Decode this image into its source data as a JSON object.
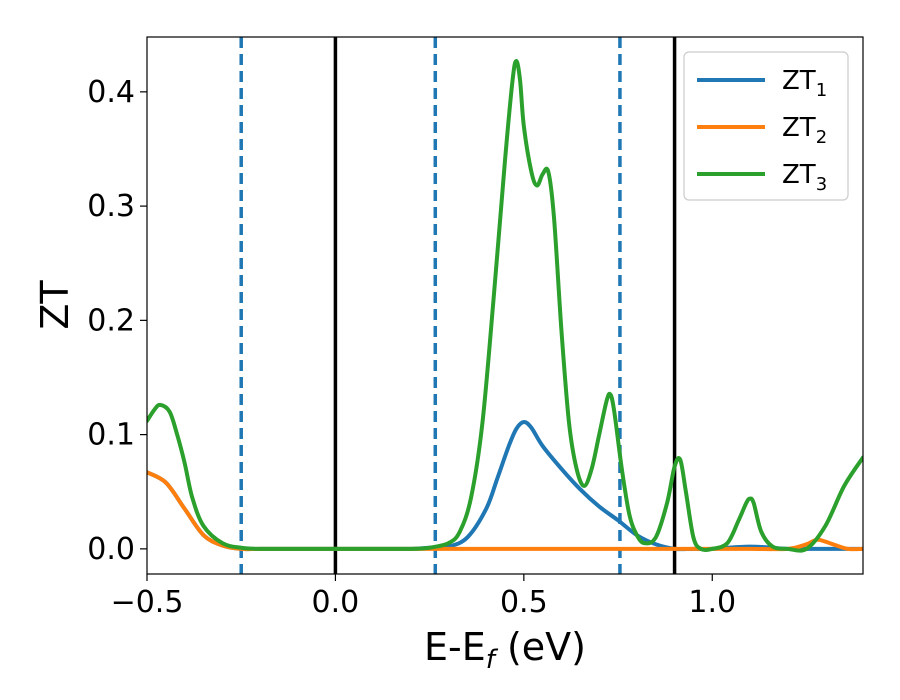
{
  "chart_data": {
    "type": "line",
    "xlabel": "E-E",
    "xlabel_sub": "f",
    "xlabel_unit": " (eV)",
    "ylabel": "ZT",
    "xlim": [
      -0.5,
      1.4
    ],
    "ylim": [
      -0.022,
      0.448
    ],
    "xticks": [
      -0.5,
      0.0,
      0.5,
      1.0
    ],
    "xtick_labels": [
      "−0.5",
      "0.0",
      "0.5",
      "1.0"
    ],
    "yticks": [
      0.0,
      0.1,
      0.2,
      0.3,
      0.4
    ],
    "ytick_labels": [
      "0.0",
      "0.1",
      "0.2",
      "0.3",
      "0.4"
    ],
    "grid": false,
    "legend_position": "top-right",
    "vlines_solid": [
      0.0,
      0.9
    ],
    "vlines_dashed": [
      -0.25,
      0.265,
      0.755
    ],
    "colors": {
      "ZT1": "#1f77b4",
      "ZT2": "#ff7f0e",
      "ZT3": "#2ca02c",
      "solid_vline": "#000000",
      "dashed_vline": "#1f77b4"
    },
    "series": [
      {
        "name": "ZT",
        "sub": "1",
        "color": "#1f77b4",
        "x": [
          -0.5,
          -0.45,
          -0.4,
          -0.35,
          -0.3,
          -0.25,
          -0.2,
          -0.1,
          0.0,
          0.1,
          0.2,
          0.25,
          0.3,
          0.35,
          0.4,
          0.43,
          0.46,
          0.48,
          0.5,
          0.52,
          0.55,
          0.6,
          0.65,
          0.7,
          0.75,
          0.8,
          0.85,
          0.9,
          0.95,
          1.0,
          1.1,
          1.2,
          1.25,
          1.3,
          1.35,
          1.4
        ],
        "y": [
          0.067,
          0.058,
          0.035,
          0.012,
          0.003,
          0.0,
          0.0,
          0.0,
          0.0,
          0.0,
          0.0,
          0.001,
          0.002,
          0.01,
          0.035,
          0.062,
          0.09,
          0.105,
          0.111,
          0.106,
          0.09,
          0.07,
          0.052,
          0.037,
          0.025,
          0.012,
          0.004,
          0.0,
          0.0,
          0.0,
          0.002,
          0.0,
          0.0,
          0.0,
          0.0,
          0.0
        ]
      },
      {
        "name": "ZT",
        "sub": "2",
        "color": "#ff7f0e",
        "x": [
          -0.5,
          -0.45,
          -0.4,
          -0.35,
          -0.3,
          -0.25,
          -0.2,
          -0.1,
          0.0,
          0.2,
          0.4,
          0.6,
          0.8,
          1.0,
          1.1,
          1.2,
          1.25,
          1.28,
          1.32,
          1.36,
          1.4
        ],
        "y": [
          0.067,
          0.058,
          0.035,
          0.012,
          0.003,
          0.0,
          0.0,
          0.0,
          0.0,
          0.0,
          0.0,
          0.0,
          0.0,
          0.0,
          0.0,
          0.0,
          0.004,
          0.008,
          0.004,
          0.0,
          0.0
        ]
      },
      {
        "name": "ZT",
        "sub": "3",
        "color": "#2ca02c",
        "x": [
          -0.5,
          -0.48,
          -0.465,
          -0.44,
          -0.42,
          -0.4,
          -0.38,
          -0.35,
          -0.3,
          -0.25,
          -0.2,
          -0.1,
          0.0,
          0.1,
          0.2,
          0.25,
          0.3,
          0.33,
          0.36,
          0.39,
          0.42,
          0.45,
          0.47,
          0.48,
          0.49,
          0.5,
          0.52,
          0.535,
          0.55,
          0.565,
          0.58,
          0.6,
          0.62,
          0.64,
          0.66,
          0.68,
          0.7,
          0.72,
          0.73,
          0.74,
          0.76,
          0.78,
          0.8,
          0.82,
          0.85,
          0.88,
          0.9,
          0.915,
          0.93,
          0.95,
          0.97,
          1.0,
          1.04,
          1.07,
          1.09,
          1.1,
          1.11,
          1.13,
          1.16,
          1.2,
          1.25,
          1.3,
          1.35,
          1.4
        ],
        "y": [
          0.112,
          0.122,
          0.126,
          0.12,
          0.1,
          0.075,
          0.045,
          0.02,
          0.005,
          0.001,
          0.0,
          0.0,
          0.0,
          0.0,
          0.0,
          0.001,
          0.005,
          0.015,
          0.045,
          0.11,
          0.22,
          0.34,
          0.41,
          0.427,
          0.41,
          0.37,
          0.33,
          0.318,
          0.328,
          0.33,
          0.29,
          0.19,
          0.11,
          0.07,
          0.055,
          0.07,
          0.1,
          0.13,
          0.135,
          0.12,
          0.07,
          0.03,
          0.012,
          0.005,
          0.01,
          0.04,
          0.072,
          0.078,
          0.05,
          0.01,
          0.0,
          0.0,
          0.005,
          0.025,
          0.04,
          0.044,
          0.04,
          0.015,
          0.002,
          0.0,
          0.0,
          0.02,
          0.055,
          0.08
        ]
      }
    ]
  }
}
